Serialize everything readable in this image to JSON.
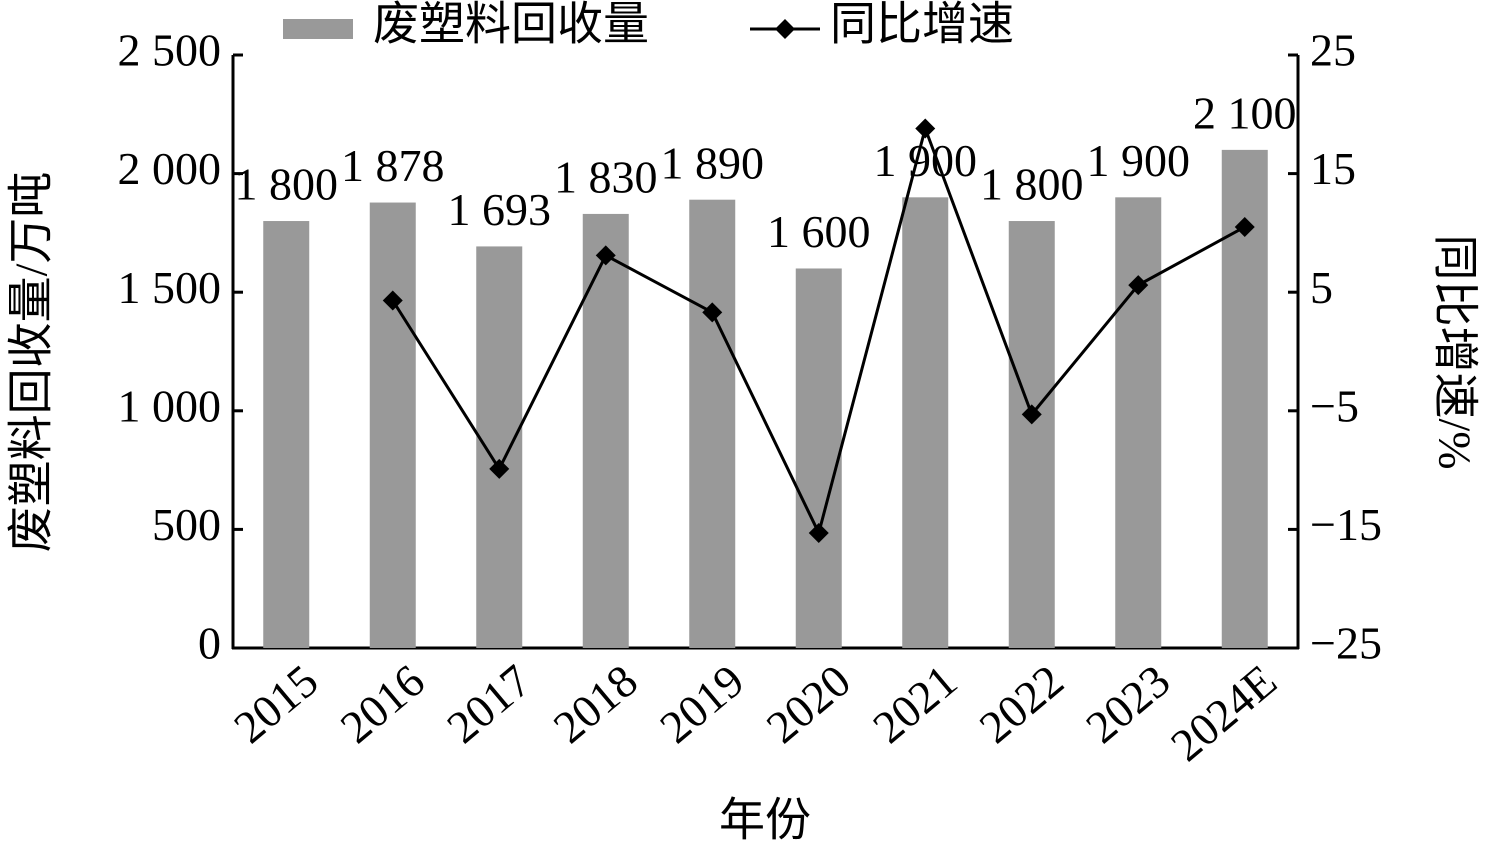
{
  "chart_data": {
    "type": "bar_line",
    "categories": [
      "2015",
      "2016",
      "2017",
      "2018",
      "2019",
      "2020",
      "2021",
      "2022",
      "2023",
      "2024E"
    ],
    "x_label": "年份",
    "y_label": "废塑料回收量/万吨",
    "y2_label": "同比增速/%",
    "series": [
      {
        "name": "废塑料回收量",
        "type": "bar",
        "color": "#999999",
        "values": [
          1800,
          1878,
          1693,
          1830,
          1890,
          1600,
          1900,
          1800,
          1900,
          2100
        ],
        "value_labels": [
          "1 800",
          "1 878",
          "1 693",
          "1 830",
          "1 890",
          "1 600",
          "1 900",
          "1 800",
          "1 900",
          "2 100"
        ]
      },
      {
        "name": "同比增速",
        "type": "line",
        "axis": "y2",
        "color": "#000000",
        "values": [
          null,
          4.3,
          -9.9,
          8.1,
          3.3,
          -15.3,
          18.8,
          -5.3,
          5.6,
          10.5
        ]
      }
    ],
    "ylim": [
      0,
      2500
    ],
    "yticks": [
      0,
      500,
      {
        "value": 1000,
        "label": "1 000"
      },
      {
        "value": 1500,
        "label": "1 500"
      },
      {
        "value": 2000,
        "label": "2 000"
      },
      {
        "value": 2500,
        "label": "2 500"
      }
    ],
    "y2lim": [
      -25,
      25
    ],
    "y2ticks": [
      {
        "value": -25,
        "label": "−25"
      },
      {
        "value": -15,
        "label": "−15"
      },
      {
        "value": -5,
        "label": "−5"
      },
      5,
      15,
      25
    ]
  }
}
